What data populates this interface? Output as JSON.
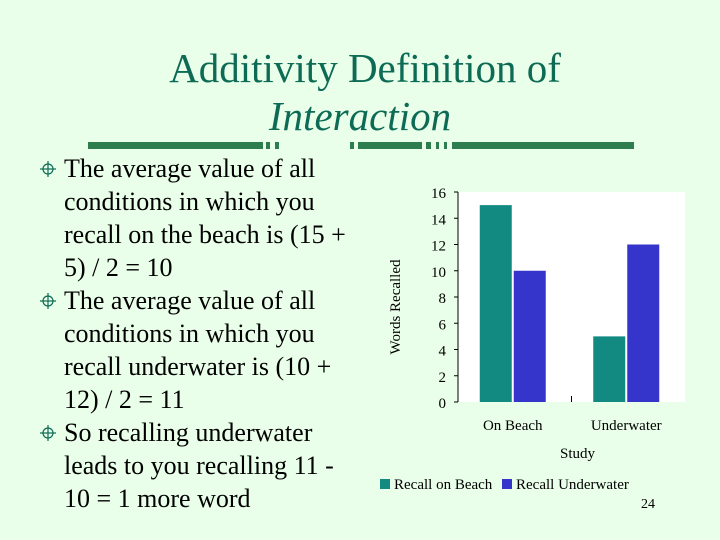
{
  "slide": {
    "title_line1": "Additivity Definition of",
    "title_line2": "Interaction",
    "bullets": [
      "The average value of all conditions in which you recall on the beach is (15 + 5) / 2 = 10",
      "The average value of all conditions in which you recall underwater is (10 + 12) / 2 = 11",
      "So recalling underwater leads to you recalling 11 - 10 = 1 more word"
    ],
    "page_number": "24"
  },
  "colors": {
    "title": "#0d6b55",
    "background": "#eaffea",
    "series_teal": "#128a82",
    "series_blue": "#3535cc"
  },
  "chart_data": {
    "type": "bar",
    "categories": [
      "On Beach",
      "Underwater"
    ],
    "series": [
      {
        "name": "Recall on Beach",
        "values": [
          15,
          5
        ],
        "color": "#128a82"
      },
      {
        "name": "Recall Underwater",
        "values": [
          10,
          12
        ],
        "color": "#3535cc"
      }
    ],
    "xlabel": "Study",
    "ylabel": "Words Recalled",
    "ylim": [
      0,
      16
    ],
    "yticks": [
      "0",
      "2",
      "4",
      "6",
      "8",
      "10",
      "12",
      "14",
      "16"
    ],
    "grid": false,
    "legend_position": "bottom"
  }
}
